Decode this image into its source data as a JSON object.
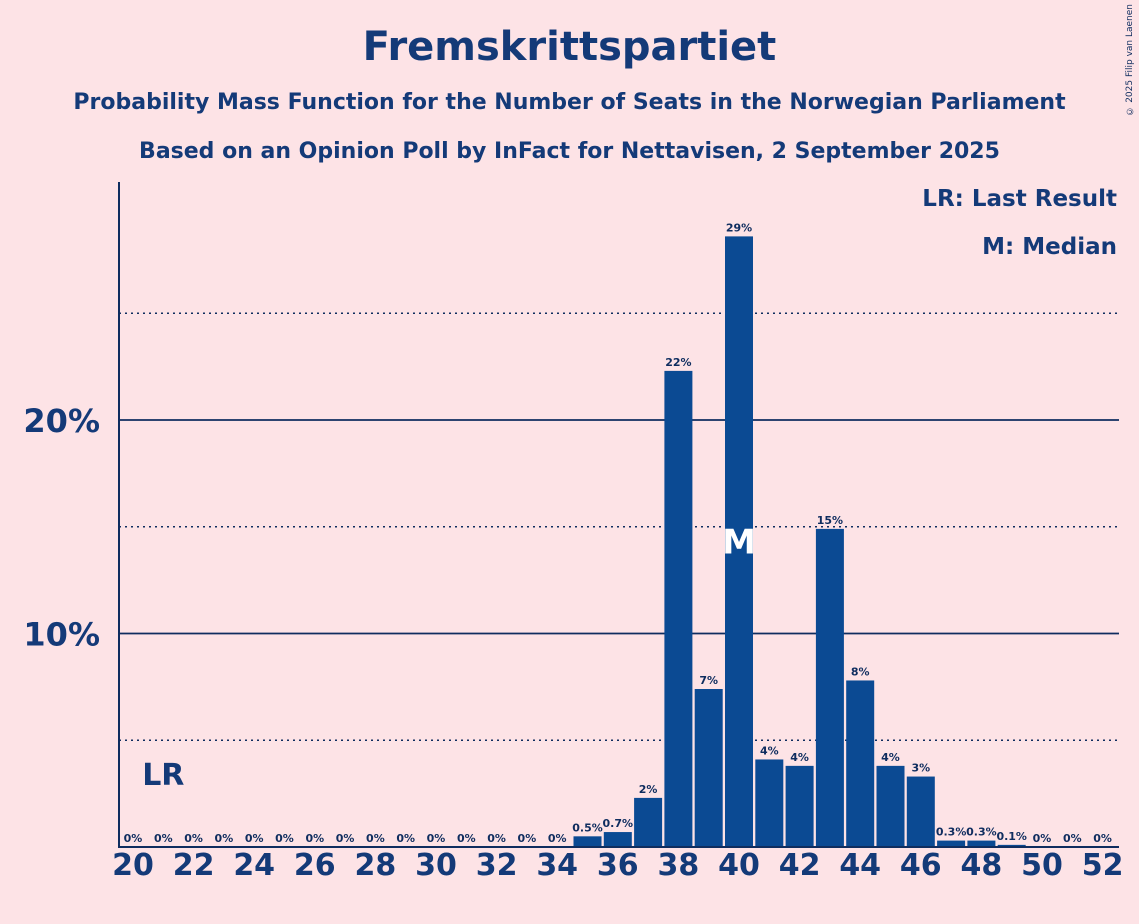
{
  "chart_data": {
    "type": "bar",
    "title": "Fremskrittspartiet",
    "subtitle": "Probability Mass Function for the Number of Seats in the Norwegian Parliament",
    "subtitle2": "Based on an Opinion Poll by InFact for Nettavisen, 2 September 2025",
    "copyright": "© 2025 Filip van Laenen",
    "legend": [
      "LR: Last Result",
      "M: Median"
    ],
    "last_result_seats": 21,
    "last_result_label": "LR",
    "median_seats": 40,
    "median_label": "M",
    "x_tick_values": [
      20,
      22,
      24,
      26,
      28,
      30,
      32,
      34,
      36,
      38,
      40,
      42,
      44,
      46,
      48,
      50,
      52
    ],
    "y_tick_values": [
      10,
      20
    ],
    "y_tick_labels": [
      "10%",
      "20%"
    ],
    "y_dotted_values": [
      5,
      15,
      25
    ],
    "ylim": [
      0,
      31
    ],
    "xlim": [
      19.5,
      52.5
    ],
    "bar_color": "#0b4a93",
    "seats": [
      20,
      21,
      22,
      23,
      24,
      25,
      26,
      27,
      28,
      29,
      30,
      31,
      32,
      33,
      34,
      35,
      36,
      37,
      38,
      39,
      40,
      41,
      42,
      43,
      44,
      45,
      46,
      47,
      48,
      49,
      50,
      51,
      52
    ],
    "values": [
      0,
      0,
      0,
      0,
      0,
      0,
      0,
      0,
      0,
      0,
      0,
      0,
      0,
      0,
      0,
      0.5,
      0.7,
      2.3,
      22.3,
      7.4,
      28.6,
      4.1,
      3.8,
      14.9,
      7.8,
      3.8,
      3.3,
      0.3,
      0.3,
      0.1,
      0,
      0,
      0
    ],
    "labels": [
      "0%",
      "0%",
      "0%",
      "0%",
      "0%",
      "0%",
      "0%",
      "0%",
      "0%",
      "0%",
      "0%",
      "0%",
      "0%",
      "0%",
      "0%",
      "0.5%",
      "0.7%",
      "2%",
      "22%",
      "7%",
      "29%",
      "4%",
      "4%",
      "15%",
      "8%",
      "4%",
      "3%",
      "0.3%",
      "0.3%",
      "0.1%",
      "0%",
      "0%",
      "0%"
    ]
  }
}
